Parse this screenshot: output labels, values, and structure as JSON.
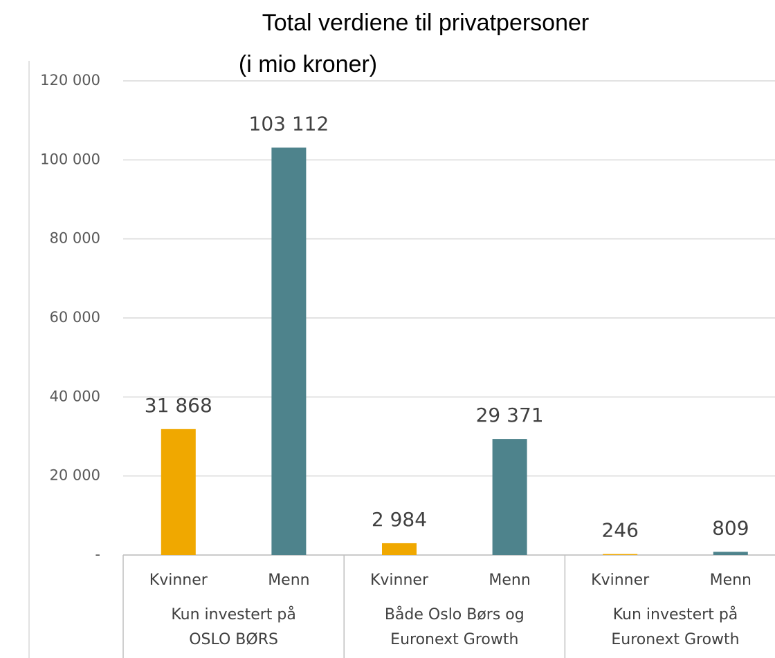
{
  "chart_data": {
    "type": "bar",
    "title": [
      "Total verdiene til privatpersoner",
      "(i mio kroner)"
    ],
    "categories": [
      "Kvinner",
      "Menn",
      "Kvinner",
      "Menn",
      "Kvinner",
      "Menn"
    ],
    "groups": [
      [
        "Kun investert på",
        "OSLO BØRS"
      ],
      [
        "Både Oslo Børs og",
        "Euronext Growth"
      ],
      [
        "Kun investert på",
        "Euronext Growth"
      ]
    ],
    "values": [
      31868,
      103112,
      2984,
      29371,
      246,
      809
    ],
    "value_labels": [
      "31 868",
      "103 112",
      "2 984",
      "29 371",
      "246",
      "809"
    ],
    "colors": [
      "#f0a800",
      "#4e838c",
      "#f0a800",
      "#4e838c",
      "#f0a800",
      "#4e838c"
    ],
    "ylim": [
      0,
      120000
    ],
    "yticks": [
      {
        "value": 0,
        "label": "-"
      },
      {
        "value": 20000,
        "label": "20 000"
      },
      {
        "value": 40000,
        "label": "40 000"
      },
      {
        "value": 60000,
        "label": "60 000"
      },
      {
        "value": 80000,
        "label": "80 000"
      },
      {
        "value": 100000,
        "label": "100 000"
      },
      {
        "value": 120000,
        "label": "120 000"
      }
    ],
    "grid": true
  }
}
